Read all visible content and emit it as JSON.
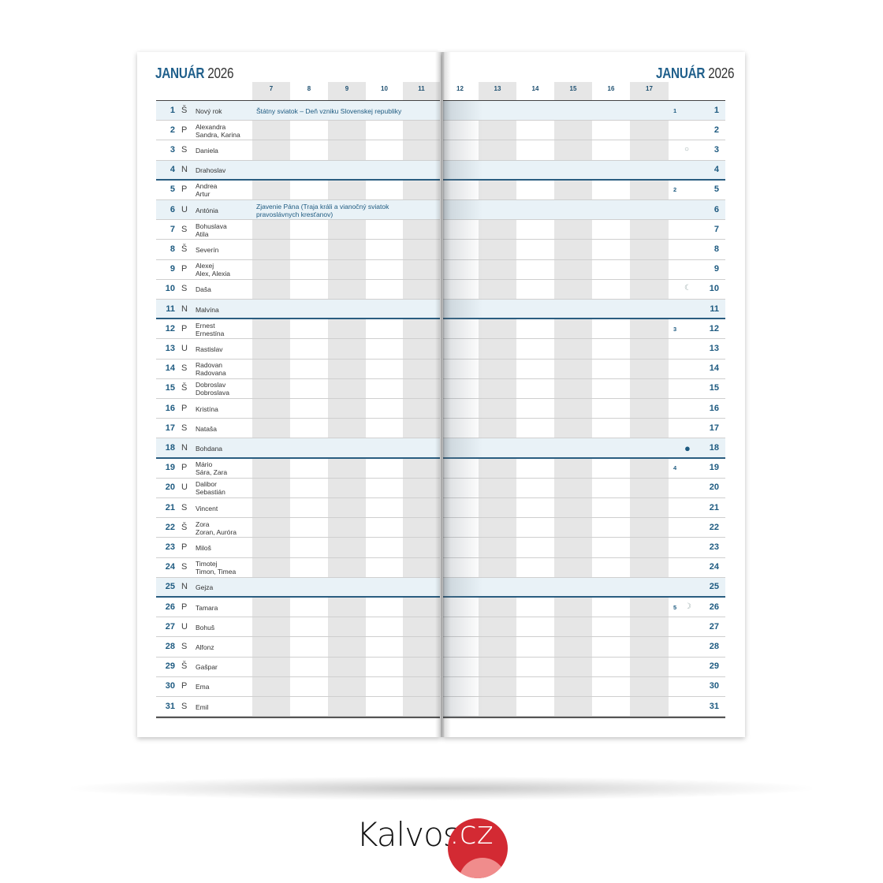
{
  "title": {
    "month": "JANUÁR",
    "year": "2026"
  },
  "hours_left": [
    "7",
    "8",
    "9",
    "10",
    "11"
  ],
  "hours_right": [
    "12",
    "13",
    "14",
    "15",
    "16",
    "17"
  ],
  "days": [
    {
      "d": "1",
      "l": "Š",
      "n": "Nový rok",
      "hol": "Štátny sviatok – Deň vzniku Slovenskej republiky",
      "wk": "1",
      "moon": "",
      "type": "holiday"
    },
    {
      "d": "2",
      "l": "P",
      "n": "Alexandra\nSandra, Karina",
      "type": ""
    },
    {
      "d": "3",
      "l": "S",
      "n": "Daniela",
      "moon": "○",
      "type": ""
    },
    {
      "d": "4",
      "l": "N",
      "n": "Drahoslav",
      "type": "sunday"
    },
    {
      "d": "5",
      "l": "P",
      "n": "Andrea\nArtur",
      "wk": "2",
      "type": ""
    },
    {
      "d": "6",
      "l": "U",
      "n": "Antónia",
      "hol": "Zjavenie Pána (Traja králi a vianočný sviatok\npravoslávnych kresťanov)",
      "type": "holiday"
    },
    {
      "d": "7",
      "l": "S",
      "n": "Bohuslava\nAtila",
      "type": ""
    },
    {
      "d": "8",
      "l": "Š",
      "n": "Severín",
      "type": ""
    },
    {
      "d": "9",
      "l": "P",
      "n": "Alexej\nAlex, Alexia",
      "type": ""
    },
    {
      "d": "10",
      "l": "S",
      "n": "Daša",
      "moon": "☾",
      "type": ""
    },
    {
      "d": "11",
      "l": "N",
      "n": "Malvína",
      "type": "sunday"
    },
    {
      "d": "12",
      "l": "P",
      "n": "Ernest\nErnestína",
      "wk": "3",
      "type": ""
    },
    {
      "d": "13",
      "l": "U",
      "n": "Rastislav",
      "type": ""
    },
    {
      "d": "14",
      "l": "S",
      "n": "Radovan\nRadovana",
      "type": ""
    },
    {
      "d": "15",
      "l": "Š",
      "n": "Dobroslav\nDobroslava",
      "type": ""
    },
    {
      "d": "16",
      "l": "P",
      "n": "Kristína",
      "type": ""
    },
    {
      "d": "17",
      "l": "S",
      "n": "Nataša",
      "type": ""
    },
    {
      "d": "18",
      "l": "N",
      "n": "Bohdana",
      "moon": "●",
      "type": "sunday"
    },
    {
      "d": "19",
      "l": "P",
      "n": "Mário\nSára, Zara",
      "wk": "4",
      "type": ""
    },
    {
      "d": "20",
      "l": "U",
      "n": "Dalibor\nSebastián",
      "type": ""
    },
    {
      "d": "21",
      "l": "S",
      "n": "Vincent",
      "type": ""
    },
    {
      "d": "22",
      "l": "Š",
      "n": "Zora\nZoran, Auróra",
      "type": ""
    },
    {
      "d": "23",
      "l": "P",
      "n": "Miloš",
      "type": ""
    },
    {
      "d": "24",
      "l": "S",
      "n": "Timotej\nTimon, Timea",
      "type": ""
    },
    {
      "d": "25",
      "l": "N",
      "n": "Gejza",
      "type": "sunday"
    },
    {
      "d": "26",
      "l": "P",
      "n": "Tamara",
      "wk": "5",
      "moon": "☽",
      "type": ""
    },
    {
      "d": "27",
      "l": "U",
      "n": "Bohuš",
      "type": ""
    },
    {
      "d": "28",
      "l": "S",
      "n": "Alfonz",
      "type": ""
    },
    {
      "d": "29",
      "l": "Š",
      "n": "Gašpar",
      "type": ""
    },
    {
      "d": "30",
      "l": "P",
      "n": "Ema",
      "type": ""
    },
    {
      "d": "31",
      "l": "S",
      "n": "Emil",
      "type": ""
    }
  ],
  "logo": {
    "text": "Kalvos",
    "tld": ".cz",
    "color": "#d32a33"
  }
}
